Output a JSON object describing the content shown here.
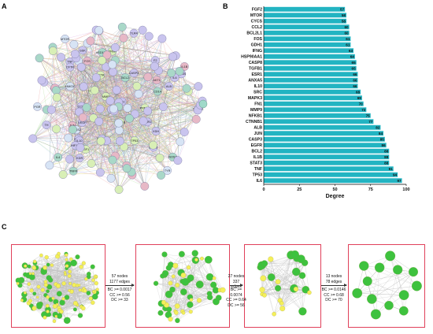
{
  "panel_a": {
    "letter": "A",
    "labels": [
      "STING1",
      "CEBPD",
      "HSD11B1",
      "TNFR",
      "TRIM",
      "GSK",
      "BCL2",
      "IL4",
      "MMP",
      "FOS",
      "NFKB",
      "STAT3",
      "IL6",
      "TNF",
      "IL1B",
      "EGFR",
      "CASP3",
      "TP53",
      "JUN",
      "ALB",
      "MAPK",
      "ESR1",
      "ANXA",
      "VEGF",
      "SRC",
      "IL10",
      "MTOR",
      "CCL2",
      "PTGS2",
      "HIF1A",
      "KDR",
      "APP",
      "AKT1",
      "F2",
      "CFTR",
      "PGR",
      "CD14",
      "ACTA",
      "HMOX",
      "IGF1",
      "TLR4",
      "NOS3",
      "XDH",
      "ADH1B",
      "PPARG",
      "CHRM",
      "TH",
      "TYR",
      "PTPN"
    ],
    "highlight_colors": {
      "green": "#4cc76a",
      "pink": "#e68aa0",
      "purple": "#9a8ad6",
      "teal": "#9fd9c9",
      "edge": "#8a8f99"
    }
  },
  "panel_b": {
    "letter": "B",
    "xlabel": "Degree",
    "bar_color": "#22b4c2"
  },
  "panel_c": {
    "letter": "C",
    "steps": [
      {
        "line1": "57 nodes",
        "line2": "1177 edges",
        "line3": "BC >= 0.0017",
        "line4": "CC >= 0.56",
        "line5": "DC >= 33"
      },
      {
        "line1": "27 nodes",
        "line2": "337 edges",
        "line3": "BC >= 0.0074",
        "line4": "CC >= 0.64",
        "line5": "DC >= 56"
      },
      {
        "line1": "13 nodes",
        "line2": "78 edges",
        "line3": "BC >= 0.0146",
        "line4": "CC >= 0.68",
        "line5": "DC >= 70"
      }
    ],
    "colors": {
      "box_border": "#e0405a",
      "green_node": "#3ec23e",
      "yellow_node": "#f4ef5a",
      "edge": "#9a9a9a"
    }
  },
  "chart_data": {
    "type": "bar",
    "orientation": "horizontal",
    "categories": [
      "FGF2",
      "MTOR",
      "CYCS",
      "CCL2",
      "BCL2L1",
      "FOS",
      "GDH1",
      "IFNG",
      "HSP90AA1",
      "CASP8",
      "TGFB1",
      "ESR1",
      "ANXA5",
      "IL10",
      "SRC",
      "MAPK3",
      "FN1",
      "MMP9",
      "NFKB1",
      "CTNNB1",
      "ALB",
      "JUN",
      "CASP3",
      "EGFR",
      "BCL2",
      "IL1B",
      "STAT3",
      "TNF",
      "TP53",
      "IL6"
    ],
    "values": [
      57,
      58,
      58,
      60,
      60,
      61,
      61,
      63,
      64,
      65,
      65,
      66,
      66,
      66,
      68,
      69,
      70,
      72,
      75,
      77,
      82,
      84,
      85,
      86,
      88,
      88,
      88,
      91,
      94,
      97
    ],
    "value_labels": [
      "57",
      "58",
      "58",
      "60",
      "60",
      "61",
      "61",
      "63",
      "64",
      "65",
      "65",
      "66",
      "66",
      "66",
      "68",
      "69",
      "70",
      "72",
      "75",
      "77",
      "82",
      "84",
      "85",
      "86",
      "88",
      "88",
      "88",
      "91",
      "94",
      "97"
    ],
    "xticks": [
      "0",
      "25",
      "50",
      "75",
      "100"
    ],
    "xlim": [
      0,
      100
    ],
    "xlabel": "Degree",
    "legend": "none",
    "grid": false
  }
}
